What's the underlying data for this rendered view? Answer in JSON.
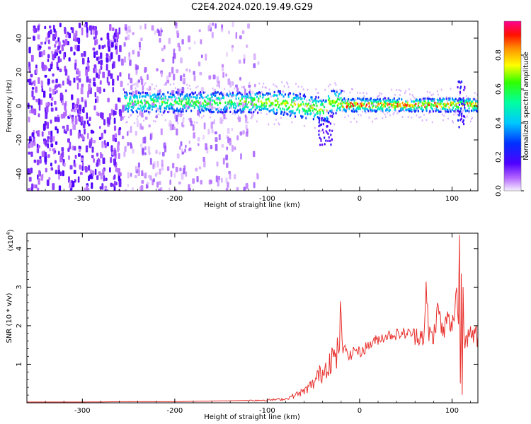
{
  "figure": {
    "title": "C2E4.2024.020.19.49.G29"
  },
  "colors": {
    "snr_line": "#e8302c",
    "colormap": [
      "#ffffff",
      "#7a00e6",
      "#0000ff",
      "#00c8ff",
      "#00ff40",
      "#ffff00",
      "#ff9000",
      "#ff0000",
      "#ff00a0"
    ]
  },
  "chart_data": [
    {
      "type": "heatmap",
      "xlabel": "Height of straight line (km)",
      "ylabel": "Frequency (Hz)",
      "xlim": [
        -360,
        128
      ],
      "ylim": [
        -50,
        50
      ],
      "xticks": [
        -300,
        -200,
        -100,
        0,
        100
      ],
      "yticks": [
        -40,
        -20,
        0,
        20,
        40
      ],
      "colorbar": {
        "label": "Normalized spectral amplitude",
        "range": [
          0.0,
          1.0
        ],
        "ticks": [
          "0.0",
          "0.2",
          "0.4",
          "0.6",
          "0.8"
        ]
      }
    },
    {
      "type": "line",
      "xlabel": "Height of straight line (km)",
      "ylabel": "SNR (10 * v/v)",
      "yscale_label": "(x10",
      "yscale_exp": "4",
      "yscale_close": ")",
      "xlim": [
        -360,
        128
      ],
      "ylim": [
        0,
        4.4
      ],
      "xticks": [
        -300,
        -200,
        -100,
        0,
        100
      ],
      "yticks": [
        1,
        2,
        3,
        4
      ],
      "series": [
        {
          "x": [
            -360,
            -300,
            -250,
            -200,
            -150,
            -120,
            -100,
            -80,
            -60,
            -50,
            -45,
            -40,
            -35,
            -30,
            -25,
            -20,
            -18,
            -15,
            -10,
            -5,
            0,
            10,
            20,
            30,
            40,
            50,
            60,
            70,
            72,
            75,
            80,
            85,
            90,
            95,
            100,
            103,
            105,
            107,
            108,
            109,
            110,
            111,
            112,
            113,
            115,
            120,
            128
          ],
          "y": [
            0.02,
            0.02,
            0.03,
            0.03,
            0.05,
            0.06,
            0.07,
            0.1,
            0.3,
            0.5,
            0.7,
            0.8,
            1.0,
            1.2,
            1.1,
            2.2,
            1.3,
            1.4,
            1.2,
            1.4,
            1.3,
            1.5,
            1.65,
            1.75,
            1.78,
            1.8,
            1.8,
            1.75,
            2.9,
            1.8,
            1.7,
            2.5,
            1.75,
            2.2,
            1.9,
            2.5,
            3.0,
            2.0,
            4.4,
            0.3,
            3.3,
            0.2,
            3.3,
            1.7,
            1.7,
            1.7,
            1.72
          ]
        }
      ]
    }
  ]
}
